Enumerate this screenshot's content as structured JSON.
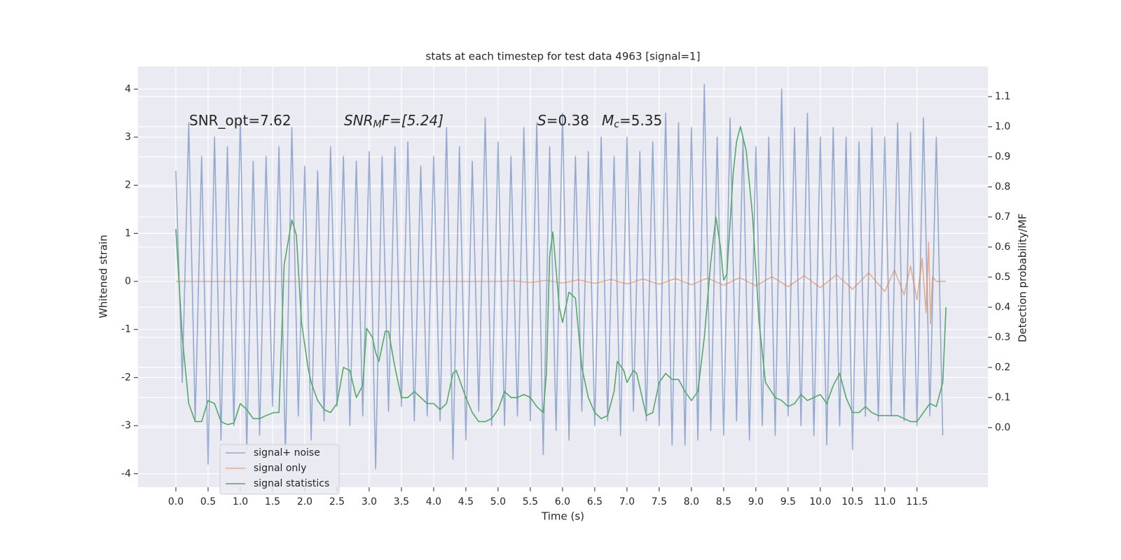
{
  "chart_data": {
    "type": "line",
    "title": "stats at each timestep for test data 4963 [signal=1]",
    "x_label": "Time (s)",
    "y_label": "Whitened strain",
    "y2_label": "Detection probability/MF",
    "annotations": [
      {
        "text": "SNR_opt=7.62"
      },
      {
        "symbol": "SNR",
        "sub": "M",
        "text": "F=[5.24]"
      },
      {
        "symbol": "S",
        "text": "=0.38"
      },
      {
        "symbol": "M",
        "sub": "c",
        "text": "=5.35"
      }
    ],
    "xlim": [
      -0.587,
      12.6
    ],
    "ylim": [
      -4.28,
      4.47
    ],
    "y2lim": [
      -0.198,
      1.2
    ],
    "xticks": [
      {
        "value": 0,
        "label": "0.0"
      },
      0.5,
      {
        "value": 1,
        "label": "1.0"
      },
      1.5,
      {
        "value": 2,
        "label": "2.0"
      },
      2.5,
      {
        "value": 3,
        "label": "3.0"
      },
      3.5,
      {
        "value": 4,
        "label": "4.0"
      },
      4.5,
      {
        "value": 5,
        "label": "5.0"
      },
      5.5,
      {
        "value": 6,
        "label": "6.0"
      },
      6.5,
      {
        "value": 7,
        "label": "7.0"
      },
      7.5,
      {
        "value": 8,
        "label": "8.0"
      },
      8.5,
      {
        "value": 9,
        "label": "9.0"
      },
      9.5,
      {
        "value": 10,
        "label": "10.0"
      },
      10.5,
      {
        "value": 11,
        "label": "11.0"
      },
      11.5
    ],
    "yticks": [
      -4,
      -3,
      -2,
      -1,
      0,
      1,
      2,
      3,
      4
    ],
    "y2ticks": [
      {
        "value": 0,
        "label": "0.0"
      },
      0.1,
      0.2,
      0.3,
      0.4,
      0.5,
      0.6,
      0.7,
      0.8,
      0.9,
      {
        "value": 1,
        "label": "1.0"
      },
      1.1
    ],
    "grid": true,
    "legend": "lower left",
    "series": [
      {
        "name": "signal+ noise",
        "color": "#4c72b0",
        "axis": "y",
        "x": [
          0,
          0.1,
          0.2,
          0.3,
          0.4,
          0.5,
          0.6,
          0.7,
          0.8,
          0.9,
          1,
          1.1,
          1.2,
          1.3,
          1.4,
          1.5,
          1.6,
          1.7,
          1.8,
          1.9,
          2,
          2.1,
          2.2,
          2.3,
          2.4,
          2.5,
          2.6,
          2.7,
          2.8,
          2.9,
          3,
          3.1,
          3.2,
          3.3,
          3.4,
          3.5,
          3.6,
          3.7,
          3.8,
          3.9,
          4,
          4.1,
          4.2,
          4.3,
          4.4,
          4.5,
          4.6,
          4.7,
          4.8,
          4.9,
          5,
          5.1,
          5.2,
          5.3,
          5.4,
          5.5,
          5.6,
          5.7,
          5.8,
          5.9,
          6,
          6.1,
          6.2,
          6.3,
          6.4,
          6.5,
          6.6,
          6.7,
          6.8,
          6.9,
          7,
          7.1,
          7.2,
          7.3,
          7.4,
          7.5,
          7.6,
          7.7,
          7.8,
          7.9,
          8,
          8.1,
          8.2,
          8.3,
          8.4,
          8.5,
          8.6,
          8.7,
          8.8,
          8.9,
          9,
          9.1,
          9.2,
          9.3,
          9.4,
          9.5,
          9.6,
          9.7,
          9.8,
          9.9,
          10,
          10.1,
          10.2,
          10.3,
          10.4,
          10.5,
          10.6,
          10.7,
          10.8,
          10.9,
          11,
          11.1,
          11.2,
          11.3,
          11.4,
          11.5,
          11.6,
          11.7,
          11.8,
          11.9
        ],
        "values": [
          2.3,
          -2.1,
          3.3,
          -2.9,
          2.6,
          -3.8,
          3.0,
          -3.3,
          2.8,
          -3.0,
          3.4,
          -3.5,
          2.5,
          -3.2,
          2.6,
          -2.6,
          2.8,
          -3.6,
          3.2,
          -2.8,
          2.4,
          -3.3,
          2.3,
          -2.9,
          2.8,
          -2.6,
          2.6,
          -3.0,
          2.5,
          -2.8,
          2.7,
          -3.9,
          2.6,
          -2.7,
          2.8,
          -2.6,
          2.9,
          -2.9,
          2.4,
          -2.8,
          2.6,
          -2.9,
          3.2,
          -3.7,
          2.8,
          -3.3,
          2.5,
          -2.7,
          3.4,
          -3.0,
          2.9,
          -3.0,
          2.6,
          -2.8,
          3.2,
          -2.9,
          3.3,
          -3.6,
          2.8,
          -3.1,
          3.5,
          -3.3,
          2.6,
          -2.7,
          2.7,
          -3.0,
          3.0,
          -2.9,
          2.6,
          -3.2,
          3.0,
          -2.7,
          2.7,
          -2.9,
          2.9,
          -3.0,
          3.5,
          -3.4,
          3.3,
          -3.4,
          3.2,
          -3.3,
          4.1,
          -3.1,
          3.0,
          -3.2,
          3.4,
          -2.9,
          3.0,
          -3.3,
          2.8,
          -3.0,
          3.0,
          -3.2,
          4.0,
          -2.8,
          3.2,
          -3.0,
          3.5,
          -3.2,
          3.0,
          -3.4,
          3.2,
          -3.0,
          3.0,
          -3.5,
          2.9,
          -2.8,
          3.2,
          -2.9,
          3.0,
          -2.8,
          3.3,
          -2.9,
          3.1,
          -3.0,
          3.4,
          -2.8,
          3.0,
          -3.2
        ]
      },
      {
        "name": "signal only",
        "color": "#dd8452",
        "axis": "y",
        "x": [
          0,
          5,
          5.25,
          5.5,
          5.75,
          6,
          6.25,
          6.5,
          6.75,
          7,
          7.25,
          7.5,
          7.75,
          8,
          8.25,
          8.5,
          8.75,
          9,
          9.25,
          9.5,
          9.75,
          10,
          10.25,
          10.5,
          10.75,
          11,
          11.15,
          11.3,
          11.4,
          11.5,
          11.58,
          11.64,
          11.68,
          11.71,
          11.74,
          11.8,
          11.95
        ],
        "values": [
          0,
          0,
          0.01,
          -0.02,
          0.02,
          -0.03,
          0.03,
          -0.04,
          0.04,
          -0.05,
          0.05,
          -0.06,
          0.06,
          -0.07,
          0.07,
          -0.08,
          0.08,
          -0.09,
          0.1,
          -0.11,
          0.12,
          -0.13,
          0.14,
          -0.16,
          0.18,
          -0.21,
          0.24,
          -0.28,
          0.32,
          -0.38,
          0.48,
          -0.65,
          0.82,
          -0.88,
          0.1,
          0,
          0
        ]
      },
      {
        "name": "signal statistics",
        "color": "#55a868",
        "axis": "y2",
        "x": [
          0,
          0.1,
          0.2,
          0.3,
          0.4,
          0.5,
          0.6,
          0.7,
          0.8,
          0.9,
          1,
          1.1,
          1.2,
          1.3,
          1.4,
          1.52,
          1.6,
          1.68,
          1.8,
          1.87,
          1.95,
          2.05,
          2.1,
          2.2,
          2.3,
          2.4,
          2.5,
          2.6,
          2.7,
          2.8,
          2.9,
          2.96,
          3.05,
          3.1,
          3.15,
          3.25,
          3.3,
          3.4,
          3.5,
          3.6,
          3.7,
          3.8,
          3.9,
          4,
          4.1,
          4.2,
          4.3,
          4.35,
          4.5,
          4.6,
          4.7,
          4.8,
          4.9,
          5,
          5.1,
          5.2,
          5.3,
          5.4,
          5.5,
          5.6,
          5.7,
          5.75,
          5.8,
          5.85,
          5.95,
          6,
          6.05,
          6.1,
          6.2,
          6.3,
          6.4,
          6.5,
          6.6,
          6.7,
          6.8,
          6.85,
          6.95,
          7,
          7.1,
          7.15,
          7.3,
          7.4,
          7.5,
          7.6,
          7.7,
          7.8,
          7.9,
          8,
          8.1,
          8.2,
          8.3,
          8.38,
          8.45,
          8.5,
          8.55,
          8.65,
          8.7,
          8.76,
          8.85,
          8.95,
          9.05,
          9.15,
          9.3,
          9.4,
          9.5,
          9.6,
          9.7,
          9.8,
          9.9,
          10,
          10.1,
          10.2,
          10.3,
          10.4,
          10.5,
          10.6,
          10.7,
          10.8,
          10.9,
          11,
          11.2,
          11.3,
          11.4,
          11.5,
          11.6,
          11.7,
          11.8,
          11.9,
          11.95
        ],
        "values": [
          0.66,
          0.3,
          0.08,
          0.02,
          0.02,
          0.09,
          0.08,
          0.02,
          0.01,
          0.015,
          0.08,
          0.06,
          0.03,
          0.03,
          0.04,
          0.05,
          0.05,
          0.54,
          0.69,
          0.64,
          0.35,
          0.2,
          0.15,
          0.09,
          0.06,
          0.05,
          0.08,
          0.2,
          0.19,
          0.1,
          0.14,
          0.33,
          0.3,
          0.25,
          0.22,
          0.32,
          0.32,
          0.2,
          0.1,
          0.1,
          0.12,
          0.1,
          0.08,
          0.08,
          0.06,
          0.08,
          0.18,
          0.19,
          0.1,
          0.05,
          0.02,
          0.02,
          0.03,
          0.06,
          0.12,
          0.1,
          0.1,
          0.11,
          0.1,
          0.07,
          0.05,
          0.18,
          0.57,
          0.65,
          0.4,
          0.35,
          0.4,
          0.45,
          0.43,
          0.2,
          0.1,
          0.05,
          0.03,
          0.04,
          0.12,
          0.22,
          0.19,
          0.15,
          0.19,
          0.18,
          0.04,
          0.05,
          0.15,
          0.18,
          0.16,
          0.16,
          0.12,
          0.09,
          0.12,
          0.3,
          0.55,
          0.7,
          0.6,
          0.49,
          0.51,
          0.85,
          0.95,
          1.0,
          0.92,
          0.7,
          0.35,
          0.15,
          0.1,
          0.09,
          0.07,
          0.08,
          0.11,
          0.09,
          0.1,
          0.11,
          0.08,
          0.14,
          0.18,
          0.1,
          0.05,
          0.05,
          0.07,
          0.05,
          0.04,
          0.04,
          0.04,
          0.03,
          0.02,
          0.02,
          0.05,
          0.08,
          0.07,
          0.15,
          0.4
        ]
      }
    ]
  }
}
